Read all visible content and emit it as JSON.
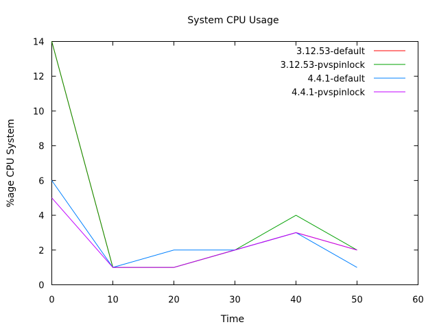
{
  "chart_data": {
    "type": "line",
    "title": "System CPU Usage",
    "xlabel": "Time",
    "ylabel": "%age CPU System",
    "xlim": [
      0,
      60
    ],
    "ylim": [
      0,
      14
    ],
    "x_ticks": [
      0,
      10,
      20,
      30,
      40,
      50,
      60
    ],
    "y_ticks": [
      0,
      2,
      4,
      6,
      8,
      10,
      12,
      14
    ],
    "grid": false,
    "legend_position": "top-right",
    "x": [
      0,
      10,
      20,
      30,
      40,
      50
    ],
    "series": [
      {
        "name": "3.12.53-default",
        "color": "#ff0000",
        "values": [
          14,
          1,
          1,
          2,
          3,
          2
        ]
      },
      {
        "name": "3.12.53-pvspinlock",
        "color": "#00a000",
        "values": [
          14,
          1,
          1,
          2,
          4,
          2
        ]
      },
      {
        "name": "4.4.1-default",
        "color": "#0080ff",
        "values": [
          6,
          1,
          2,
          2,
          3,
          1
        ]
      },
      {
        "name": "4.4.1-pvspinlock",
        "color": "#c000ff",
        "values": [
          5,
          1,
          1,
          2,
          3,
          2
        ]
      }
    ]
  }
}
